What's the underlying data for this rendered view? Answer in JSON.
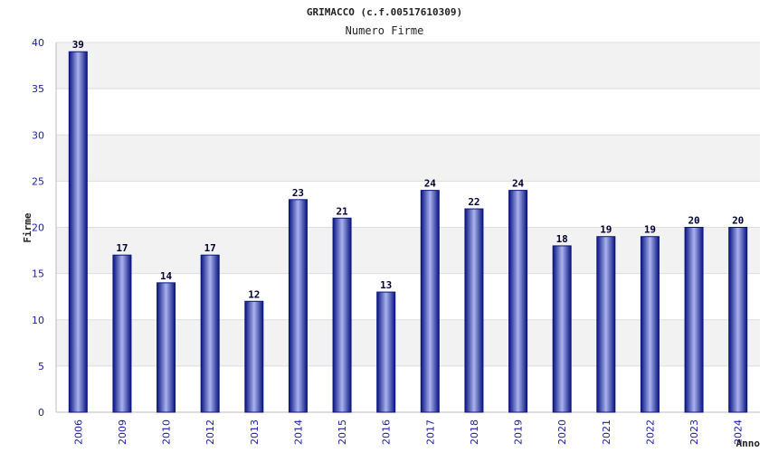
{
  "chart_data": {
    "type": "bar",
    "title": "GRIMACCO (c.f.00517610309)",
    "subtitle": "Numero Firme",
    "ylabel": "Firme",
    "xlabel": "Anno",
    "categories": [
      "2006",
      "2009",
      "2010",
      "2012",
      "2013",
      "2014",
      "2015",
      "2016",
      "2017",
      "2018",
      "2019",
      "2020",
      "2021",
      "2022",
      "2023",
      "2024"
    ],
    "values": [
      39,
      17,
      14,
      17,
      12,
      23,
      21,
      13,
      24,
      22,
      24,
      18,
      19,
      19,
      20,
      20
    ],
    "ylim": [
      0,
      40
    ],
    "yticks": [
      0,
      5,
      10,
      15,
      20,
      25,
      30,
      35,
      40
    ],
    "grid": true,
    "colors": {
      "bar_dark": "#0a1580",
      "bar_light": "#aab3ee",
      "band": "#f2f2f2",
      "tick_text": "#1a1aa6"
    }
  }
}
